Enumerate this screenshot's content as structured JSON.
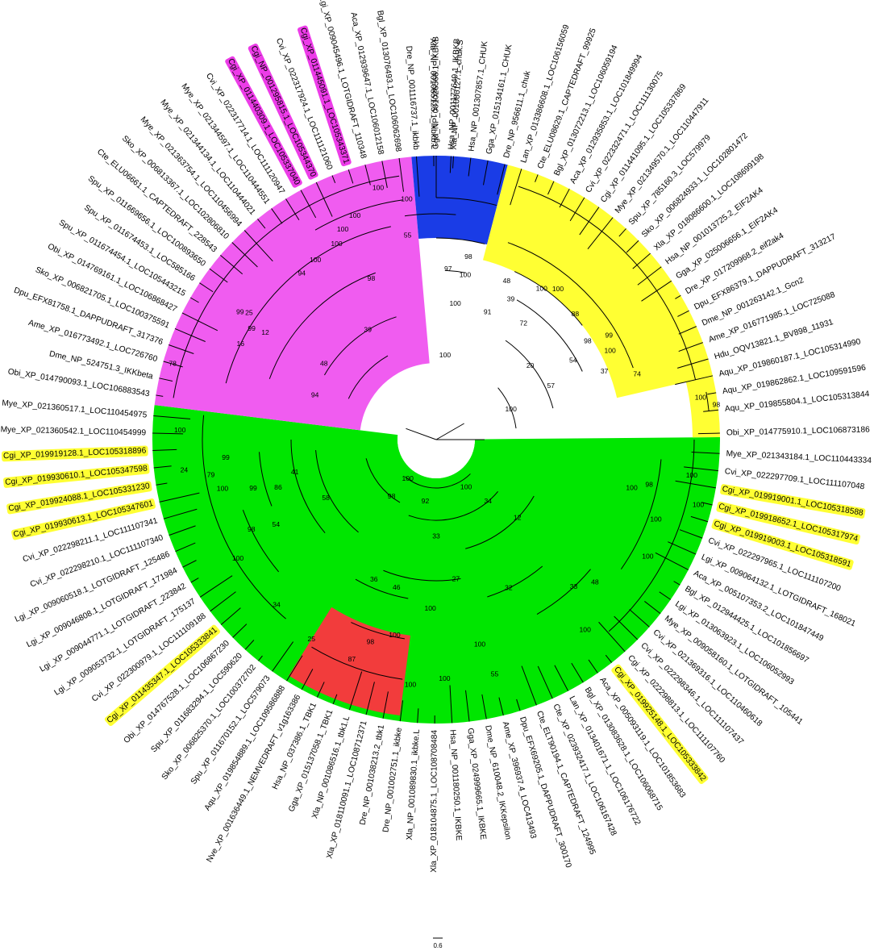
{
  "colors": {
    "magenta_clade": "#f05cf0",
    "blue_clade": "#1a3ce6",
    "yellow_clade": "#ffff33",
    "green_clade": "#00e600",
    "red_clade": "#f23c3c",
    "label_highlight_yellow": "#ffff33",
    "label_highlight_magenta": "#ec3ce8"
  },
  "scale_bar": {
    "label": "0.6"
  },
  "leaves": [
    {
      "name": "Gga_NP_001026568.1_IKBKB",
      "angle": -90,
      "hl": null
    },
    {
      "name": "Xla_NP_001086127.1_chuk.S",
      "angle": -86.5,
      "hl": null
    },
    {
      "name": "Hsa_NP_001307857.1_CHUK",
      "angle": -83,
      "hl": null
    },
    {
      "name": "Gga_XP_015134161.1_CHUK",
      "angle": -79.5,
      "hl": null
    },
    {
      "name": "Dre_NP_956611.1_chuk",
      "angle": -76,
      "hl": null
    },
    {
      "name": "Lan_XP_013386608.1_LOC106156059",
      "angle": -72.5,
      "hl": null
    },
    {
      "name": "Cte_ELU08629.1_CAPTEDRAFT_99925",
      "angle": -69,
      "hl": null
    },
    {
      "name": "Bgl_XP_013072213.1_LOC106059194",
      "angle": -65.5,
      "hl": null
    },
    {
      "name": "Aca_XP_012935853.1_LOC101849994",
      "angle": -62,
      "hl": null
    },
    {
      "name": "Cvi_XP_022332471.1_LOC111130075",
      "angle": -58.5,
      "hl": null
    },
    {
      "name": "Cgi_XP_011441095.1_LOC105337869",
      "angle": -55,
      "hl": null
    },
    {
      "name": "Mye_XP_021349570.1_LOC110447911",
      "angle": -51.5,
      "hl": null
    },
    {
      "name": "Spu_XP_785160.3_LOC579979",
      "angle": -48,
      "hl": null
    },
    {
      "name": "Sko_XP_006824933.1_LOC102801472",
      "angle": -44.5,
      "hl": null
    },
    {
      "name": "Xla_XP_018086600.1_LOC108699198",
      "angle": -41,
      "hl": null
    },
    {
      "name": "Hsa_NP_001013725.2_EIF2AK4",
      "angle": -37.5,
      "hl": null
    },
    {
      "name": "Gga_XP_025006656.1_EIF2AK4",
      "angle": -34,
      "hl": null
    },
    {
      "name": "Dre_XP_017209968.2_eif2ak4",
      "angle": -30.5,
      "hl": null
    },
    {
      "name": "Dpu_EFX86379.1_DAPPUDRAFT_313217",
      "angle": -27,
      "hl": null
    },
    {
      "name": "Dme_NP_001263142.1_Gcn2",
      "angle": -23.5,
      "hl": null
    },
    {
      "name": "Ame_XP_016771985.1_LOC725088",
      "angle": -20,
      "hl": null
    },
    {
      "name": "Hdu_OQV13821.1_BV898_11931",
      "angle": -16.5,
      "hl": null
    },
    {
      "name": "Aqu_XP_019860187.1_LOC105314990",
      "angle": -13,
      "hl": null
    },
    {
      "name": "Aqu_XP_019862862.1_LOC109591596",
      "angle": -9.5,
      "hl": null
    },
    {
      "name": "Aqu_XP_019855804.1_LOC105313844",
      "angle": -6,
      "hl": null
    },
    {
      "name": "Obi_XP_014775910.1_LOC106873186",
      "angle": -1.3,
      "hl": null
    },
    {
      "name": "Mye_XP_021343184.1_LOC110443334",
      "angle": 2.8,
      "hl": null
    },
    {
      "name": "Cvi_XP_022297709.1_LOC111107048",
      "angle": 6.3,
      "hl": null
    },
    {
      "name": "Cgi_XP_019919001.1_LOC105318588",
      "angle": 9.8,
      "hl": "yellow"
    },
    {
      "name": "Cgi_XP_019918652.1_LOC105317974",
      "angle": 13.3,
      "hl": "yellow"
    },
    {
      "name": "Cgi_XP_019919003.1_LOC105318591",
      "angle": 16.8,
      "hl": "yellow"
    },
    {
      "name": "Cvi_XP_022297965.1_LOC111107200",
      "angle": 20.3,
      "hl": null
    },
    {
      "name": "Lgi_XP_009064132.1_LOTGIDRAFT_168021",
      "angle": 23.8,
      "hl": null
    },
    {
      "name": "Aca_XP_005107353.2_LOC101847449",
      "angle": 27.3,
      "hl": null
    },
    {
      "name": "Bgl_XP_012944425.1_LOC101856697",
      "angle": 30.8,
      "hl": null
    },
    {
      "name": "Lgi_XP_013063923.1_LOC106052993",
      "angle": 34.3,
      "hl": null
    },
    {
      "name": "Mye_XP_009058160.1_LOTGIDRAFT_105441",
      "angle": 37.8,
      "hl": null
    },
    {
      "name": "Cvi_XP_021369316.1_LOC110460618",
      "angle": 41.3,
      "hl": null
    },
    {
      "name": "Cvi_XP_022298346.1_LOC111107437",
      "angle": 44.8,
      "hl": null
    },
    {
      "name": "Cgi_XP_022298813.1_LOC111107760",
      "angle": 48.3,
      "hl": null
    },
    {
      "name": "Cgi_XP_019925148.1_LOC105333842",
      "angle": 51.8,
      "hl": "yellow"
    },
    {
      "name": "Aca_XP_005093119.1_LOC101853683",
      "angle": 55.3,
      "hl": null
    },
    {
      "name": "Bgl_XP_013083628.1_LOC106068715",
      "angle": 58.8,
      "hl": null
    },
    {
      "name": "Lan_XP_013401671.1_LOC106176722",
      "angle": 62.3,
      "hl": null
    },
    {
      "name": "Cte_XP_023932417.1_LOC106167428",
      "angle": 65.8,
      "hl": null
    },
    {
      "name": "Cte_ELT90194.1_CAPTEDRAFT_124995",
      "angle": 69.3,
      "hl": null
    },
    {
      "name": "Dpu_EFX69205.1_DAPPUDRAFT_300170",
      "angle": 72.8,
      "hl": null
    },
    {
      "name": "Ame_XP_396937.4_LOC413493",
      "angle": 76.3,
      "hl": null
    },
    {
      "name": "Dme_NP_610048.2_IKKepsilon",
      "angle": 79.8,
      "hl": null
    },
    {
      "name": "Gga_XP_024999665.1_IKBKE",
      "angle": 83.3,
      "hl": null
    },
    {
      "name": "Hsa_NP_001180250.1_IKBKE",
      "angle": 86.8,
      "hl": null
    },
    {
      "name": "Xla_XP_018104875.1_LOC108708484",
      "angle": 90.3,
      "hl": null
    },
    {
      "name": "Xla_NP_001089830.1_ikbke.L",
      "angle": 93.8,
      "hl": null
    },
    {
      "name": "Dre_NP_001002751.1_ikbke",
      "angle": 97.3,
      "hl": null
    },
    {
      "name": "Dre_NP_001038213.2_tbk1",
      "angle": 100.8,
      "hl": null
    },
    {
      "name": "Xla_XP_018110091.1_LOC108712371",
      "angle": 104.3,
      "hl": null
    },
    {
      "name": "Xla_NP_001086516.1_tbk1.L",
      "angle": 107.8,
      "hl": null
    },
    {
      "name": "Gga_XP_015137058.1_TBK1",
      "angle": 111.3,
      "hl": null
    },
    {
      "name": "Hsa_NP_037386.1_TBK1",
      "angle": 114.8,
      "hl": null
    },
    {
      "name": "Nve_XP_001636449.1_NEMVEDRAFT_v1g163386",
      "angle": 118.3,
      "hl": null
    },
    {
      "name": "Aqu_XP_019854889.1_LOC109586888",
      "angle": 121.8,
      "hl": null
    },
    {
      "name": "Spu_XP_011670152.1_LOC579073",
      "angle": 125.3,
      "hl": null
    },
    {
      "name": "Sko_XP_006825370.1_LOC100372702",
      "angle": 128.8,
      "hl": null
    },
    {
      "name": "Spu_XP_011683294.1_LOC590620",
      "angle": 132.3,
      "hl": null
    },
    {
      "name": "Obi_XP_014767528.1_LOC106867230",
      "angle": 135.8,
      "hl": null
    },
    {
      "name": "Cgi_XP_011435347.1_LOC105333841",
      "angle": 139.3,
      "hl": "yellow"
    },
    {
      "name": "Cvi_XP_022300979.1_LOC111109188",
      "angle": 142.8,
      "hl": null
    },
    {
      "name": "Lgi_XP_009053732.1_LOTGIDRAFT_175137",
      "angle": 146.3,
      "hl": null
    },
    {
      "name": "Lgi_XP_009044771.1_LOTGIDRAFT_223842",
      "angle": 149.8,
      "hl": null
    },
    {
      "name": "Lgi_XP_009046808.1_LOTGIDRAFT_171984",
      "angle": 153.3,
      "hl": null
    },
    {
      "name": "Lgi_XP_009060518.1_LOTGIDRAFT_125486",
      "angle": 156.8,
      "hl": null
    },
    {
      "name": "Cvi_XP_022298210.1_LOC111107340",
      "angle": 160.3,
      "hl": null
    },
    {
      "name": "Cvi_XP_022298211.1_LOC111107341",
      "angle": 163.8,
      "hl": null
    },
    {
      "name": "Cgi_XP_019930613.1_LOC105347601",
      "angle": 167.3,
      "hl": "yellow"
    },
    {
      "name": "Cgi_XP_019924088.1_LOC105331230",
      "angle": 170.8,
      "hl": "yellow"
    },
    {
      "name": "Cgi_XP_019930610.1_LOC105347598",
      "angle": 174.3,
      "hl": "yellow"
    },
    {
      "name": "Cgi_XP_019919128.1_LOC105318896",
      "angle": 177.8,
      "hl": "yellow"
    },
    {
      "name": "Mye_XP_021360542.1_LOC110454999",
      "angle": 181.3,
      "hl": null
    },
    {
      "name": "Mye_XP_021360517.1_LOC110454975",
      "angle": 184.8,
      "hl": null
    },
    {
      "name": "Obi_XP_014790093.1_LOC106883543",
      "angle": 189,
      "hl": null
    },
    {
      "name": "Dme_NP_524751.3_IKKbeta",
      "angle": 192.5,
      "hl": null
    },
    {
      "name": "Ame_XP_016773492.1_LOC726760",
      "angle": 196,
      "hl": null
    },
    {
      "name": "Dpu_EFX81758.1_DAPPUDRAFT_317376",
      "angle": 199.5,
      "hl": null
    },
    {
      "name": "Sko_XP_006821705.1_LOC100375591",
      "angle": 203,
      "hl": null
    },
    {
      "name": "Obi_XP_014769161.1_LOC106868427",
      "angle": 206.5,
      "hl": null
    },
    {
      "name": "Spu_XP_011674454.1_LOC105443215",
      "angle": 210,
      "hl": null
    },
    {
      "name": "Spu_XP_011674453.1_LOC585166",
      "angle": 213.5,
      "hl": null
    },
    {
      "name": "Spu_XP_011669656.1_LOC100893650",
      "angle": 217,
      "hl": null
    },
    {
      "name": "Cte_ELU06661.1_CAPTEDRAFT_228543",
      "angle": 220.5,
      "hl": null
    },
    {
      "name": "Sko_XP_006813367.1_LOC102806810",
      "angle": 224,
      "hl": null
    },
    {
      "name": "Mye_XP_021363754.1_LOC110456994",
      "angle": 227.5,
      "hl": null
    },
    {
      "name": "Mye_XP_021344134.1_LOC110444021",
      "angle": 231,
      "hl": null
    },
    {
      "name": "Mye_XP_021344597.1_LOC110444551",
      "angle": 234.5,
      "hl": null
    },
    {
      "name": "Cvi_XP_022317714.1_LOC111120947",
      "angle": 238,
      "hl": null
    },
    {
      "name": "Cgi_XP_011440309.1_LOC105337040",
      "angle": 241.5,
      "hl": "magenta"
    },
    {
      "name": "Cgi_NP_001295815.1_LOC105344370",
      "angle": 245,
      "hl": "magenta"
    },
    {
      "name": "Cvi_XP_022317924.1_LOC111121060",
      "angle": 248.5,
      "hl": null
    },
    {
      "name": "Cgi_XP_011445091.1_LOC105343371",
      "angle": 252,
      "hl": "magenta"
    },
    {
      "name": "Lgi_XP_009045496.1_LOTGIDRAFT_110348",
      "angle": 255.5,
      "hl": null
    },
    {
      "name": "Aca_XP_012939647.1_LOC106012158",
      "angle": 259,
      "hl": null
    },
    {
      "name": "Bgl_XP_013076493.1_LOC106062698",
      "angle": 262.5,
      "hl": null
    },
    {
      "name": "Dre_NP_001116737.1_ikbkb",
      "angle": 266,
      "hl": null
    },
    {
      "name": "Xla_NP_001085125.1_ikbkb.L",
      "angle": 269.5,
      "hl": null
    },
    {
      "name": "Hsa_NP_001177649.1_IKBKB",
      "angle": 273,
      "hl": null
    }
  ],
  "bootstraps": [
    {
      "v": "97",
      "a": -86,
      "r": 212
    },
    {
      "v": "100",
      "a": -80,
      "r": 207
    },
    {
      "v": "98",
      "a": -80,
      "r": 230
    },
    {
      "v": "100",
      "a": -82,
      "r": 170
    },
    {
      "v": "100",
      "a": -84,
      "r": 105
    },
    {
      "v": "48",
      "a": -66,
      "r": 215
    },
    {
      "v": "39",
      "a": -62,
      "r": 197
    },
    {
      "v": "100",
      "a": -55,
      "r": 228
    },
    {
      "v": "100",
      "a": -51,
      "r": 240
    },
    {
      "v": "88",
      "a": -42,
      "r": 232
    },
    {
      "v": "91",
      "a": -68,
      "r": 170
    },
    {
      "v": "72",
      "a": -53,
      "r": 180
    },
    {
      "v": "98",
      "a": -33,
      "r": 224
    },
    {
      "v": "99",
      "a": -31,
      "r": 250
    },
    {
      "v": "100",
      "a": -27,
      "r": 242
    },
    {
      "v": "54",
      "a": -30,
      "r": 196
    },
    {
      "v": "20",
      "a": -38,
      "r": 148
    },
    {
      "v": "37",
      "a": -22,
      "r": 225
    },
    {
      "v": "74",
      "a": -18,
      "r": 262
    },
    {
      "v": "57",
      "a": -25,
      "r": 157
    },
    {
      "v": "100",
      "a": -22,
      "r": 100
    },
    {
      "v": "100",
      "a": -9,
      "r": 332
    },
    {
      "v": "98",
      "a": -7,
      "r": 350
    },
    {
      "v": "100",
      "a": 8,
      "r": 320
    },
    {
      "v": "98",
      "a": 12,
      "r": 270
    },
    {
      "v": "100",
      "a": 14,
      "r": 335
    },
    {
      "v": "100",
      "a": 14,
      "r": 250
    },
    {
      "v": "100",
      "a": 20,
      "r": 290
    },
    {
      "v": "100",
      "a": 29,
      "r": 300
    },
    {
      "v": "48",
      "a": 42,
      "r": 265
    },
    {
      "v": "33",
      "a": 47,
      "r": 250
    },
    {
      "v": "100",
      "a": 52,
      "r": 300
    },
    {
      "v": "12",
      "a": 44,
      "r": 140
    },
    {
      "v": "34",
      "a": 50,
      "r": 100
    },
    {
      "v": "100",
      "a": 58,
      "r": 70
    },
    {
      "v": "32",
      "a": 64,
      "r": 205
    },
    {
      "v": "27",
      "a": 82,
      "r": 175
    },
    {
      "v": "55",
      "a": 76,
      "r": 300
    },
    {
      "v": "100",
      "a": 78,
      "r": 260
    },
    {
      "v": "100",
      "a": 88,
      "r": 297
    },
    {
      "v": "100",
      "a": 96,
      "r": 306
    },
    {
      "v": "100",
      "a": 92,
      "r": 210
    },
    {
      "v": "100",
      "a": 102,
      "r": 248
    },
    {
      "v": "98",
      "a": 108,
      "r": 264
    },
    {
      "v": "87",
      "a": 111,
      "r": 292
    },
    {
      "v": "46",
      "a": 105,
      "r": 190
    },
    {
      "v": "36",
      "a": 114,
      "r": 190
    },
    {
      "v": "25",
      "a": 122,
      "r": 292
    },
    {
      "v": "33",
      "a": 90,
      "r": 120
    },
    {
      "v": "92",
      "a": 100,
      "r": 78
    },
    {
      "v": "100",
      "a": 126,
      "r": 60
    },
    {
      "v": "34",
      "a": 134,
      "r": 285
    },
    {
      "v": "98",
      "a": 154,
      "r": 255
    },
    {
      "v": "100",
      "a": 149,
      "r": 287
    },
    {
      "v": "54",
      "a": 152,
      "r": 225
    },
    {
      "v": "100",
      "a": 167,
      "r": 272
    },
    {
      "v": "79",
      "a": 171,
      "r": 283
    },
    {
      "v": "24",
      "a": 173,
      "r": 315
    },
    {
      "v": "99",
      "a": 175,
      "r": 262
    },
    {
      "v": "99",
      "a": 165,
      "r": 235
    },
    {
      "v": "86",
      "a": 163,
      "r": 205
    },
    {
      "v": "41",
      "a": 167,
      "r": 180
    },
    {
      "v": "58",
      "a": 152,
      "r": 155
    },
    {
      "v": "98",
      "a": 128,
      "r": 90
    },
    {
      "v": "100",
      "a": 182,
      "r": 318
    },
    {
      "v": "78",
      "a": 196,
      "r": 340
    },
    {
      "v": "94",
      "a": 200,
      "r": 160
    },
    {
      "v": "16",
      "a": 206,
      "r": 270
    },
    {
      "v": "12",
      "a": 212,
      "r": 250
    },
    {
      "v": "99",
      "a": 211,
      "r": 267
    },
    {
      "v": "99",
      "a": 213,
      "r": 290
    },
    {
      "v": "25",
      "a": 214,
      "r": 280
    },
    {
      "v": "48",
      "a": 214,
      "r": 168
    },
    {
      "v": "39",
      "a": 238,
      "r": 160
    },
    {
      "v": "94",
      "a": 231,
      "r": 265
    },
    {
      "v": "100",
      "a": 236,
      "r": 268
    },
    {
      "v": "100",
      "a": 243,
      "r": 272
    },
    {
      "v": "100",
      "a": 246,
      "r": 285
    },
    {
      "v": "100",
      "a": 250,
      "r": 295
    },
    {
      "v": "100",
      "a": 257,
      "r": 320
    },
    {
      "v": "98",
      "a": 248,
      "r": 215
    },
    {
      "v": "55",
      "a": 262,
      "r": 255
    },
    {
      "v": "100",
      "a": 263,
      "r": 300
    }
  ]
}
